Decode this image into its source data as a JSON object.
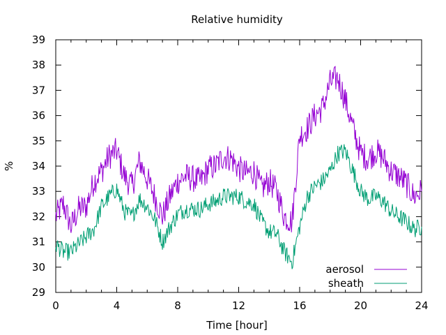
{
  "chart_data": {
    "type": "line",
    "title": "Relative humidity",
    "xlabel": "Time [hour]",
    "ylabel": "%",
    "xlim": [
      0,
      24
    ],
    "ylim": [
      29,
      39
    ],
    "xticks": [
      0,
      4,
      8,
      12,
      16,
      20,
      24
    ],
    "yticks": [
      29,
      30,
      31,
      32,
      33,
      34,
      35,
      36,
      37,
      38,
      39
    ],
    "grid": false,
    "legend_position": "bottom-right",
    "series": [
      {
        "name": "aerosol",
        "color": "#9400d3",
        "x": [
          0,
          0.5,
          1,
          1.5,
          2,
          2.5,
          3,
          3.5,
          4,
          4.5,
          5,
          5.5,
          6,
          6.5,
          7,
          7.5,
          8,
          8.5,
          9,
          9.5,
          10,
          10.5,
          11,
          11.5,
          12,
          12.5,
          13,
          13.5,
          14,
          14.5,
          15,
          15.5,
          16,
          16.5,
          17,
          17.5,
          18,
          18.5,
          19,
          19.5,
          20,
          20.5,
          21,
          21.5,
          22,
          22.5,
          23,
          23.5,
          24
        ],
        "y": [
          32.0,
          32.5,
          31.6,
          32.3,
          32.4,
          33.4,
          33.8,
          34.4,
          34.6,
          33.6,
          33.2,
          34.2,
          33.5,
          32.8,
          32.0,
          32.8,
          33.4,
          33.6,
          33.5,
          33.4,
          33.9,
          34.0,
          34.4,
          34.3,
          33.9,
          33.7,
          33.8,
          33.1,
          33.4,
          33.0,
          32.0,
          31.8,
          35.2,
          35.5,
          36.0,
          36.3,
          37.3,
          37.5,
          36.6,
          35.5,
          34.5,
          34.3,
          34.6,
          34.3,
          33.8,
          33.6,
          33.3,
          32.8,
          33.0
        ]
      },
      {
        "name": "sheath",
        "color": "#009e73",
        "x": [
          0,
          0.5,
          1,
          1.5,
          2,
          2.5,
          3,
          3.5,
          4,
          4.5,
          5,
          5.5,
          6,
          6.5,
          7,
          7.5,
          8,
          8.5,
          9,
          9.5,
          10,
          10.5,
          11,
          11.5,
          12,
          12.5,
          13,
          13.5,
          14,
          14.5,
          15,
          15.5,
          16,
          16.5,
          17,
          17.5,
          18,
          18.5,
          19,
          19.5,
          20,
          20.5,
          21,
          21.5,
          22,
          22.5,
          23,
          23.5,
          24
        ],
        "y": [
          30.9,
          30.6,
          30.6,
          30.9,
          31.2,
          31.5,
          32.4,
          32.8,
          33.1,
          32.2,
          32.0,
          32.7,
          32.4,
          31.9,
          31.0,
          31.6,
          32.1,
          32.3,
          32.3,
          32.3,
          32.5,
          32.6,
          32.8,
          32.8,
          32.8,
          32.6,
          32.5,
          31.8,
          31.4,
          31.3,
          30.6,
          30.2,
          31.6,
          32.8,
          33.2,
          33.4,
          33.8,
          34.5,
          34.6,
          33.8,
          33.0,
          32.7,
          32.8,
          32.6,
          32.2,
          32.0,
          31.8,
          31.5,
          31.6
        ]
      }
    ]
  }
}
